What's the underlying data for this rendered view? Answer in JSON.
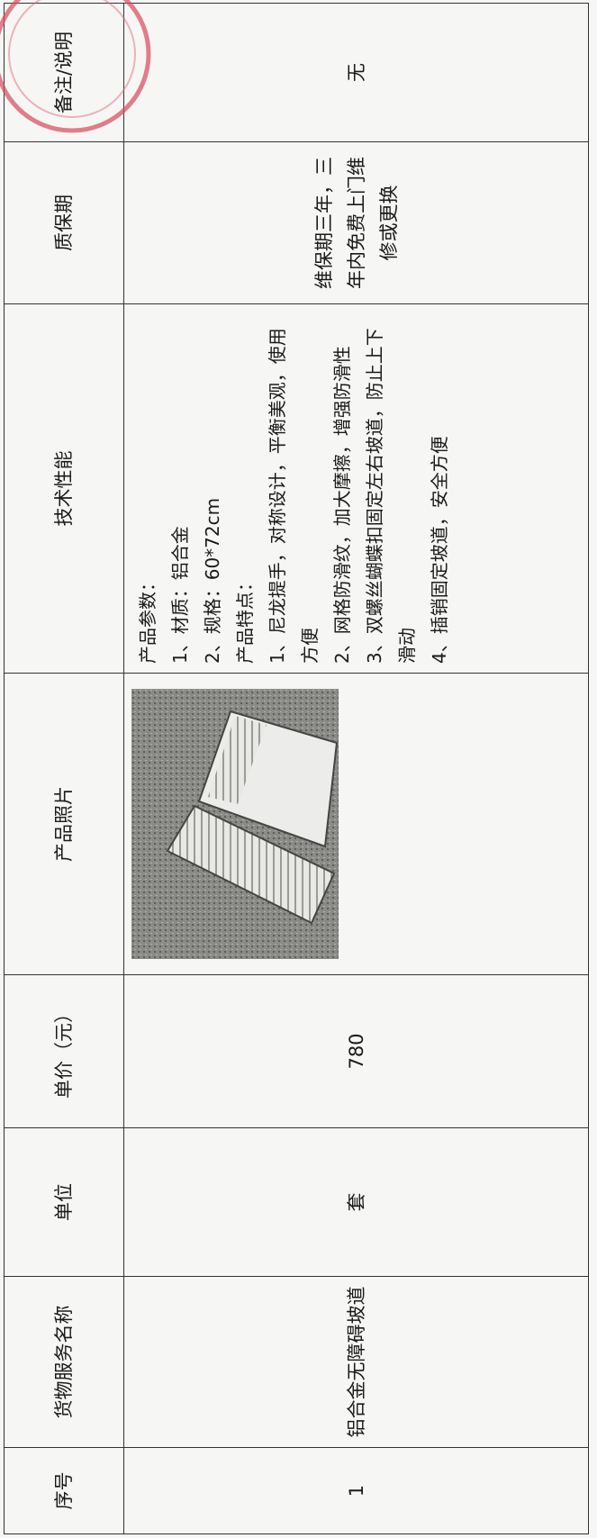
{
  "table": {
    "headers": [
      "序号",
      "货物服务名称",
      "单位",
      "单价（元）",
      "产品照片",
      "技术性能",
      "质保期",
      "备注/说明"
    ],
    "row": {
      "index": "1",
      "name": "铝合金无障碍坡道",
      "unit": "套",
      "price": "780",
      "specs": [
        "产品参数：",
        "1、材质：铝合金",
        "2、规格：60*72cm",
        "产品特点：",
        "1、尼龙提手，对称设计，平衡美观，使用方便",
        "2、网格防滑纹，加大摩擦，增强防滑性",
        "3、双螺丝蝴蝶扣固定左右坡道，防止上下滑动",
        "4、插销固定坡道，安全方便"
      ],
      "warranty": "维保期三年，三年内免费上门维修或更换",
      "remarks": "无"
    }
  }
}
